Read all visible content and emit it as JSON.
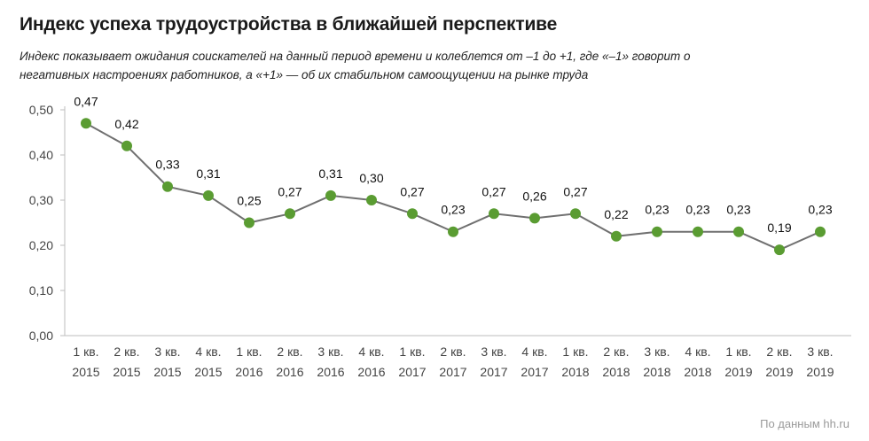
{
  "chart_data": {
    "type": "line",
    "title": "Индекс успеха трудоустройства в ближайшей перспективе",
    "subtitle": "Индекс показывает ожидания соискателей на данный период времени и колеблется от –1 до +1, где «–1» говорит о негативных настроениях работников, а «+1» — об их стабильном самоощущении на рынке труда",
    "source": "По данным hh.ru",
    "categories": [
      [
        "1 кв.",
        "2015"
      ],
      [
        "2 кв.",
        "2015"
      ],
      [
        "3 кв.",
        "2015"
      ],
      [
        "4 кв.",
        "2015"
      ],
      [
        "1 кв.",
        "2016"
      ],
      [
        "2 кв.",
        "2016"
      ],
      [
        "3 кв.",
        "2016"
      ],
      [
        "4 кв.",
        "2016"
      ],
      [
        "1 кв.",
        "2017"
      ],
      [
        "2 кв.",
        "2017"
      ],
      [
        "3 кв.",
        "2017"
      ],
      [
        "4 кв.",
        "2017"
      ],
      [
        "1 кв.",
        "2018"
      ],
      [
        "2 кв.",
        "2018"
      ],
      [
        "3 кв.",
        "2018"
      ],
      [
        "4 кв.",
        "2018"
      ],
      [
        "1 кв.",
        "2019"
      ],
      [
        "2 кв.",
        "2019"
      ],
      [
        "3 кв.",
        "2019"
      ]
    ],
    "values": [
      0.47,
      0.42,
      0.33,
      0.31,
      0.25,
      0.27,
      0.31,
      0.3,
      0.27,
      0.23,
      0.27,
      0.26,
      0.27,
      0.22,
      0.23,
      0.23,
      0.23,
      0.19,
      0.23
    ],
    "value_labels": [
      "0,47",
      "0,42",
      "0,33",
      "0,31",
      "0,25",
      "0,27",
      "0,31",
      "0,30",
      "0,27",
      "0,23",
      "0,27",
      "0,26",
      "0,27",
      "0,22",
      "0,23",
      "0,23",
      "0,23",
      "0,19",
      "0,23"
    ],
    "yticks": [
      0.0,
      0.1,
      0.2,
      0.3,
      0.4,
      0.5
    ],
    "ytick_labels": [
      "0,00",
      "0,10",
      "0,20",
      "0,30",
      "0,40",
      "0,50"
    ],
    "ylim": [
      0,
      0.5
    ],
    "grid": false,
    "colors": {
      "line": "#707070",
      "marker": "#5a9c32",
      "axis": "#bdbdbd"
    }
  }
}
